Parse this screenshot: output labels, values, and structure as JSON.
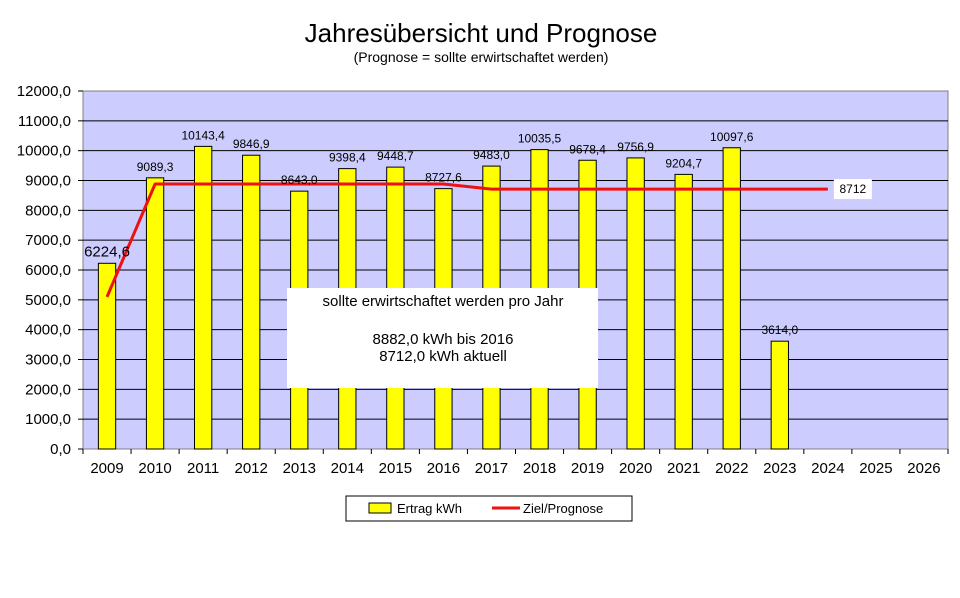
{
  "chart_data": {
    "type": "bar",
    "title": "Jahresübersicht und Prognose",
    "subtitle": "(Prognose = sollte erwirtschaftet werden)",
    "categories": [
      "2009",
      "2010",
      "2011",
      "2012",
      "2013",
      "2014",
      "2015",
      "2016",
      "2017",
      "2018",
      "2019",
      "2020",
      "2021",
      "2022",
      "2023",
      "2024",
      "2025",
      "2026"
    ],
    "ylim": [
      0,
      12000
    ],
    "yticks": [
      0,
      1000,
      2000,
      3000,
      4000,
      5000,
      6000,
      7000,
      8000,
      9000,
      10000,
      11000,
      12000
    ],
    "ytick_labels": [
      "0,0",
      "1000,0",
      "2000,0",
      "3000,0",
      "4000,0",
      "5000,0",
      "6000,0",
      "7000,0",
      "8000,0",
      "9000,0",
      "10000,0",
      "11000,0",
      "12000,0"
    ],
    "grid": true,
    "legend_position": "bottom",
    "plot_background": "#ccccff",
    "series": [
      {
        "name": "Ertrag kWh",
        "kind": "bar",
        "color": "#ffff00",
        "values": [
          6224.6,
          9089.3,
          10143.4,
          9846.9,
          8643.0,
          9398.4,
          9448.7,
          8727.6,
          9483.0,
          10035.5,
          9678.4,
          9756.9,
          9204.7,
          10097.6,
          3614.0,
          null,
          null,
          null
        ],
        "labels": [
          "6224,6",
          "9089,3",
          "10143,4",
          "9846,9",
          "8643,0",
          "9398,4",
          "9448,7",
          "8727,6",
          "9483,0",
          "10035,5",
          "9678,4",
          "9756,9",
          "9204,7",
          "10097,6",
          "3614,0",
          "",
          "",
          ""
        ]
      },
      {
        "name": "Ziel/Prognose",
        "kind": "line",
        "color": "#ee1111",
        "values": [
          5100,
          8882,
          8882,
          8882,
          8882,
          8882,
          8882,
          8882,
          8712,
          8712,
          8712,
          8712,
          8712,
          8712,
          8712,
          8712,
          null,
          null
        ],
        "end_label": "8712"
      }
    ],
    "annotation": {
      "line1": "sollte  erwirtschaftet  werden pro Jahr",
      "line2": "8882,0 kWh bis 2016",
      "line3": "8712,0 kWh aktuell"
    }
  }
}
